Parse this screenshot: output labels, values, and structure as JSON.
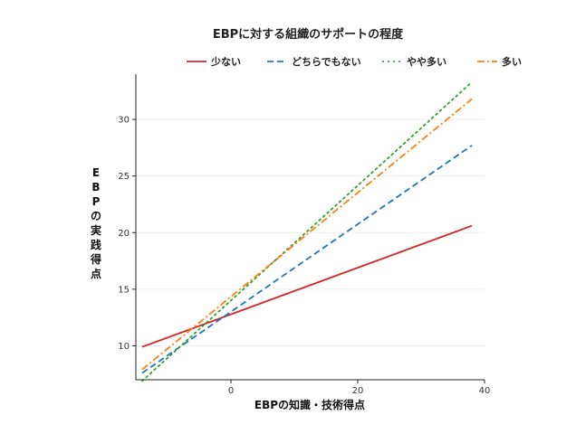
{
  "chart_data": {
    "type": "line",
    "title": "EBPに対する組織のサポートの程度",
    "xlabel": "EBPの知識・技術得点",
    "ylabel": "EBPの実践得点",
    "xlim": [
      -15,
      40
    ],
    "ylim": [
      7,
      34
    ],
    "x_ticks": [
      0,
      20,
      40
    ],
    "y_ticks": [
      10,
      15,
      20,
      25,
      30
    ],
    "grid": "horizontal",
    "legend_position": "top",
    "series": [
      {
        "name": "少ない",
        "color": "#d62728",
        "dash": "solid",
        "x": [
          -14,
          38
        ],
        "y": [
          9.9,
          20.6
        ]
      },
      {
        "name": "どちらでもない",
        "color": "#1f77b4",
        "dash": "dashed",
        "x": [
          -14,
          38
        ],
        "y": [
          7.6,
          27.7
        ]
      },
      {
        "name": "やや多い",
        "color": "#2ca02c",
        "dash": "dotted",
        "x": [
          -14,
          38
        ],
        "y": [
          6.9,
          33.3
        ]
      },
      {
        "name": "多い",
        "color": "#ff7f0e",
        "dash": "dashdot",
        "x": [
          -14,
          38
        ],
        "y": [
          7.9,
          31.8
        ]
      }
    ]
  }
}
